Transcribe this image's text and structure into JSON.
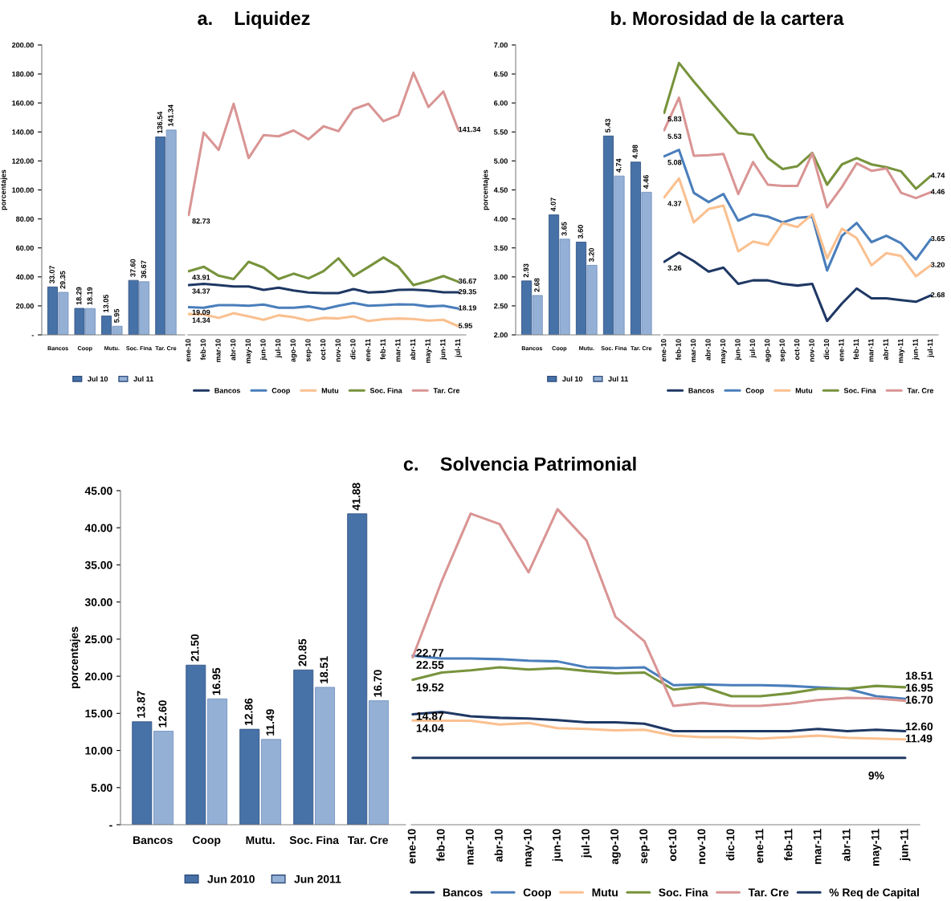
{
  "chart_data": [
    {
      "type": "bar",
      "ylabel": "porcentajes",
      "categories": [
        "Bancos",
        "Coop",
        "Mutu.",
        "Soc. Fina",
        "Tar. Cre"
      ],
      "series": [
        {
          "name": "Jul 10",
          "color": "#4672a8",
          "values": [
            33.07,
            18.29,
            13.05,
            37.6,
            136.54
          ],
          "value_labels": [
            "33.07",
            "18.29",
            "13.05",
            "37.60",
            "136.54"
          ]
        },
        {
          "name": "Jul 11",
          "color": "#95b0d5",
          "values": [
            29.35,
            18.19,
            5.95,
            36.67,
            141.34
          ],
          "value_labels": [
            "29.35",
            "18.19",
            "5.95",
            "36.67",
            "141.34"
          ]
        }
      ],
      "ylim": [
        0,
        200
      ],
      "yticks": [
        {
          "value": 0,
          "label": "-"
        },
        {
          "value": 20,
          "label": "20.00"
        },
        {
          "value": 40,
          "label": "40.00"
        },
        {
          "value": 60,
          "label": "60.00"
        },
        {
          "value": 80,
          "label": "80.00"
        },
        {
          "value": 100,
          "label": "100.00"
        },
        {
          "value": 120,
          "label": "120.00"
        },
        {
          "value": 140,
          "label": "140.00"
        },
        {
          "value": 160,
          "label": "160.00"
        },
        {
          "value": 180,
          "label": "180.00"
        },
        {
          "value": 200,
          "label": "200.00"
        }
      ],
      "legend": "bottom",
      "grid": false
    },
    {
      "type": "line",
      "title": "a.    Liquidez",
      "categories": [
        "ene-10",
        "feb-10",
        "mar-10",
        "abr-10",
        "may-10",
        "jun-10",
        "jul-10",
        "ago-10",
        "sep-10",
        "oct-10",
        "nov-10",
        "dic-10",
        "ene-11",
        "feb-11",
        "mar-11",
        "abr-11",
        "may-11",
        "jun-11",
        "jul-11"
      ],
      "series": [
        {
          "name": "Bancos",
          "color": "#1f3864",
          "values": [
            34.37,
            35.2,
            34.3,
            33.4,
            33.4,
            31,
            32.5,
            30.6,
            29.2,
            28.8,
            28.8,
            31.6,
            29.2,
            29.7,
            31,
            31.2,
            30.6,
            29.4,
            29.35
          ],
          "value_labels": [
            "34.37",
            null,
            null,
            null,
            null,
            null,
            null,
            null,
            null,
            null,
            null,
            null,
            null,
            null,
            null,
            null,
            null,
            null,
            "29.35"
          ]
        },
        {
          "name": "Coop",
          "color": "#4a7ebb",
          "values": [
            19.09,
            18.7,
            20.5,
            20.5,
            20.1,
            20.9,
            18.7,
            18.7,
            19.6,
            17.7,
            20.1,
            22,
            20.1,
            20.5,
            21,
            20.9,
            19.6,
            20.1,
            18.19
          ],
          "value_labels": [
            "19.09",
            null,
            null,
            null,
            null,
            null,
            null,
            null,
            null,
            null,
            null,
            null,
            null,
            null,
            null,
            null,
            null,
            null,
            "18.19"
          ]
        },
        {
          "name": "Mutu",
          "color": "#fac090",
          "values": [
            14.34,
            14.1,
            11.7,
            15,
            12.8,
            10.4,
            13.5,
            12.2,
            9.8,
            11.7,
            11.3,
            12.8,
            9.5,
            10.8,
            11.3,
            10.9,
            9.8,
            10.4,
            5.95
          ],
          "value_labels": [
            "14.34",
            null,
            null,
            null,
            null,
            null,
            null,
            null,
            null,
            null,
            null,
            null,
            null,
            null,
            null,
            null,
            null,
            null,
            "5.95"
          ]
        },
        {
          "name": "Soc. Fina",
          "color": "#77933c",
          "values": [
            43.91,
            47,
            40.8,
            38.5,
            50.4,
            46.4,
            38.5,
            42.2,
            39,
            44,
            52.8,
            40.6,
            46.9,
            53.4,
            47,
            34.3,
            37.1,
            40.6,
            36.67
          ],
          "value_labels": [
            "43.91",
            null,
            null,
            null,
            null,
            null,
            null,
            null,
            null,
            null,
            null,
            null,
            null,
            null,
            null,
            null,
            null,
            null,
            "36.67"
          ]
        },
        {
          "name": "Tar. Cre",
          "color": "#d99594",
          "values": [
            82.73,
            139.6,
            127.6,
            159.4,
            122,
            137.8,
            137,
            141,
            135,
            143.9,
            140.5,
            155.7,
            159.4,
            147.4,
            151.6,
            180.8,
            157.2,
            167.9,
            141.34
          ],
          "value_labels": [
            "82.73",
            null,
            null,
            null,
            null,
            null,
            null,
            null,
            null,
            null,
            null,
            null,
            null,
            null,
            null,
            null,
            null,
            null,
            "141.34"
          ]
        }
      ],
      "ylim": [
        0,
        200
      ],
      "tick_labels": "x",
      "legend": "bottom",
      "grid": false
    },
    {
      "type": "bar",
      "ylabel": "porcentajes",
      "categories": [
        "Bancos",
        "Coop",
        "Mutu.",
        "Soc. Fina",
        "Tar. Cre"
      ],
      "series": [
        {
          "name": "Jul 10",
          "color": "#4672a8",
          "values": [
            2.93,
            4.07,
            3.6,
            5.43,
            4.98
          ],
          "value_labels": [
            "2.93",
            "4.07",
            "3.60",
            "5.43",
            "4.98"
          ]
        },
        {
          "name": "Jul 11",
          "color": "#95b0d5",
          "values": [
            2.68,
            3.65,
            3.2,
            4.74,
            4.46
          ],
          "value_labels": [
            "2.68",
            "3.65",
            "3.20",
            "4.74",
            "4.46"
          ]
        }
      ],
      "ylim": [
        2,
        7
      ],
      "yticks": [
        {
          "value": 2,
          "label": "2.00"
        },
        {
          "value": 2.5,
          "label": "2.50"
        },
        {
          "value": 3,
          "label": "3.00"
        },
        {
          "value": 3.5,
          "label": "3.50"
        },
        {
          "value": 4,
          "label": "4.00"
        },
        {
          "value": 4.5,
          "label": "4.50"
        },
        {
          "value": 5,
          "label": "5.00"
        },
        {
          "value": 5.5,
          "label": "5.50"
        },
        {
          "value": 6,
          "label": "6.00"
        },
        {
          "value": 6.5,
          "label": "6.50"
        },
        {
          "value": 7,
          "label": "7.00"
        }
      ],
      "legend": "bottom",
      "grid": false
    },
    {
      "type": "line",
      "title": "b. Morosidad de la cartera",
      "categories": [
        "ene-10",
        "feb-10",
        "mar-10",
        "abr-10",
        "may-10",
        "jun-10",
        "jul-10",
        "ago-10",
        "sep-10",
        "oct-10",
        "nov-10",
        "dic-10",
        "ene-11",
        "feb-11",
        "mar-11",
        "abr-11",
        "may-11",
        "jun-11",
        "jul-11"
      ],
      "series": [
        {
          "name": "Bancos",
          "color": "#1f3864",
          "values": [
            3.26,
            3.42,
            3.27,
            3.09,
            3.16,
            2.88,
            2.94,
            2.94,
            2.88,
            2.85,
            2.88,
            2.24,
            2.54,
            2.8,
            2.63,
            2.63,
            2.6,
            2.57,
            2.68
          ],
          "value_labels": [
            "3.26",
            null,
            null,
            null,
            null,
            null,
            null,
            null,
            null,
            null,
            null,
            null,
            null,
            null,
            null,
            null,
            null,
            null,
            "2.68"
          ]
        },
        {
          "name": "Coop",
          "color": "#4a7ebb",
          "values": [
            5.08,
            5.19,
            4.45,
            4.29,
            4.43,
            3.97,
            4.08,
            4.04,
            3.94,
            4.02,
            4.04,
            3.11,
            3.71,
            3.93,
            3.6,
            3.71,
            3.58,
            3.3,
            3.65
          ],
          "value_labels": [
            "5.08",
            null,
            null,
            null,
            null,
            null,
            null,
            null,
            null,
            null,
            null,
            null,
            null,
            null,
            null,
            null,
            null,
            null,
            "3.65"
          ]
        },
        {
          "name": "Mutu",
          "color": "#fac090",
          "values": [
            4.37,
            4.7,
            3.94,
            4.17,
            4.23,
            3.44,
            3.61,
            3.55,
            3.93,
            3.86,
            4.08,
            3.32,
            3.83,
            3.67,
            3.2,
            3.41,
            3.36,
            3.01,
            3.2
          ],
          "value_labels": [
            "4.37",
            null,
            null,
            null,
            null,
            null,
            null,
            null,
            null,
            null,
            null,
            null,
            null,
            null,
            null,
            null,
            null,
            null,
            "3.20"
          ]
        },
        {
          "name": "Soc. Fina",
          "color": "#77933c",
          "values": [
            5.83,
            6.69,
            6.37,
            6.07,
            5.77,
            5.48,
            5.45,
            5.05,
            4.86,
            4.91,
            5.14,
            4.59,
            4.94,
            5.05,
            4.94,
            4.89,
            4.82,
            4.52,
            4.74
          ],
          "value_labels": [
            "5.83",
            null,
            null,
            null,
            null,
            null,
            null,
            null,
            null,
            null,
            null,
            null,
            null,
            null,
            null,
            null,
            null,
            null,
            "4.74"
          ]
        },
        {
          "name": "Tar. Cre",
          "color": "#d99594",
          "values": [
            5.53,
            6.09,
            5.09,
            5.1,
            5.12,
            4.43,
            4.98,
            4.59,
            4.57,
            4.57,
            5.13,
            4.2,
            4.55,
            4.96,
            4.83,
            4.87,
            4.45,
            4.36,
            4.46
          ],
          "value_labels": [
            "5.53",
            null,
            null,
            null,
            null,
            null,
            null,
            null,
            null,
            null,
            null,
            null,
            null,
            null,
            null,
            null,
            null,
            null,
            "4.46"
          ]
        }
      ],
      "ylim": [
        2,
        7
      ],
      "tick_labels": "x",
      "legend": "bottom",
      "grid": false
    },
    {
      "type": "bar",
      "ylabel": "porcentajes",
      "categories": [
        "Bancos",
        "Coop",
        "Mutu.",
        "Soc. Fina",
        "Tar. Cre"
      ],
      "series": [
        {
          "name": "Jun 2010",
          "color": "#4672a8",
          "values": [
            13.87,
            21.5,
            12.86,
            20.85,
            41.88
          ],
          "value_labels": [
            "13.87",
            "21.50",
            "12.86",
            "20.85",
            "41.88"
          ]
        },
        {
          "name": "Jun 2011",
          "color": "#95b0d5",
          "values": [
            12.6,
            16.95,
            11.49,
            18.51,
            16.7
          ],
          "value_labels": [
            "12.60",
            "16.95",
            "11.49",
            "18.51",
            "16.70"
          ]
        }
      ],
      "ylim": [
        0,
        45
      ],
      "yticks": [
        {
          "value": 0,
          "label": "-"
        },
        {
          "value": 5,
          "label": "5.00"
        },
        {
          "value": 10,
          "label": "10.00"
        },
        {
          "value": 15,
          "label": "15.00"
        },
        {
          "value": 20,
          "label": "20.00"
        },
        {
          "value": 25,
          "label": "25.00"
        },
        {
          "value": 30,
          "label": "30.00"
        },
        {
          "value": 35,
          "label": "35.00"
        },
        {
          "value": 40,
          "label": "40.00"
        },
        {
          "value": 45,
          "label": "45.00"
        }
      ],
      "legend": "bottom",
      "grid": false
    },
    {
      "type": "line",
      "title": "c.    Solvencia Patrimonial",
      "categories": [
        "ene-10",
        "feb-10",
        "mar-10",
        "abr-10",
        "may-10",
        "jun-10",
        "jul-10",
        "ago-10",
        "sep-10",
        "oct-10",
        "nov-10",
        "dic-10",
        "ene-11",
        "feb-11",
        "mar-11",
        "abr-11",
        "may-11",
        "jun-11"
      ],
      "series": [
        {
          "name": "Bancos",
          "color": "#1f3864",
          "values": [
            14.87,
            15.2,
            14.6,
            14.4,
            14.3,
            14.1,
            13.8,
            13.8,
            13.6,
            12.6,
            12.6,
            12.6,
            12.6,
            12.6,
            12.9,
            12.6,
            12.8,
            12.6
          ],
          "value_labels": [
            "14.87",
            null,
            null,
            null,
            null,
            null,
            null,
            null,
            null,
            null,
            null,
            null,
            null,
            null,
            null,
            null,
            null,
            "12.60"
          ]
        },
        {
          "name": "Coop",
          "color": "#4a7ebb",
          "values": [
            22.77,
            22.4,
            22.4,
            22.3,
            22.1,
            22.0,
            21.2,
            21.1,
            21.2,
            18.8,
            18.9,
            18.8,
            18.8,
            18.7,
            18.5,
            18.3,
            17.3,
            16.95
          ],
          "value_labels": [
            "22.77",
            null,
            null,
            null,
            null,
            null,
            null,
            null,
            null,
            null,
            null,
            null,
            null,
            null,
            null,
            null,
            null,
            "16.95"
          ]
        },
        {
          "name": "Mutu",
          "color": "#fac090",
          "values": [
            14.04,
            14.0,
            14.0,
            13.5,
            13.7,
            13.0,
            12.9,
            12.7,
            12.8,
            12.0,
            11.8,
            11.8,
            11.6,
            11.8,
            12.0,
            11.7,
            11.6,
            11.49
          ],
          "value_labels": [
            "14.04",
            null,
            null,
            null,
            null,
            null,
            null,
            null,
            null,
            null,
            null,
            null,
            null,
            null,
            null,
            null,
            null,
            "11.49"
          ]
        },
        {
          "name": "Soc. Fina",
          "color": "#77933c",
          "values": [
            19.52,
            20.5,
            20.8,
            21.2,
            20.9,
            21.1,
            20.7,
            20.4,
            20.5,
            18.2,
            18.6,
            17.3,
            17.3,
            17.7,
            18.3,
            18.3,
            18.7,
            18.51
          ],
          "value_labels": [
            "19.52",
            null,
            null,
            null,
            null,
            null,
            null,
            null,
            null,
            null,
            null,
            null,
            null,
            null,
            null,
            null,
            null,
            "18.51"
          ]
        },
        {
          "name": "Tar. Cre",
          "color": "#d99594",
          "values": [
            22.55,
            32.8,
            41.9,
            40.5,
            34.0,
            42.5,
            38.3,
            28.0,
            24.7,
            16.0,
            16.4,
            16.0,
            16.0,
            16.3,
            16.8,
            17.1,
            17.0,
            16.7
          ],
          "value_labels": [
            "22.55",
            null,
            null,
            null,
            null,
            null,
            null,
            null,
            null,
            null,
            null,
            null,
            null,
            null,
            null,
            null,
            null,
            "16.70"
          ]
        },
        {
          "name": "% Req de Capital",
          "color": "#1f3864",
          "values": [
            9,
            9,
            9,
            9,
            9,
            9,
            9,
            9,
            9,
            9,
            9,
            9,
            9,
            9,
            9,
            9,
            9,
            9
          ]
        }
      ],
      "annotations": [
        {
          "text": "9%",
          "x": "may-11",
          "y": 9
        }
      ],
      "ylim": [
        0,
        45
      ],
      "tick_labels": "x",
      "legend": "bottom",
      "grid": false
    }
  ]
}
